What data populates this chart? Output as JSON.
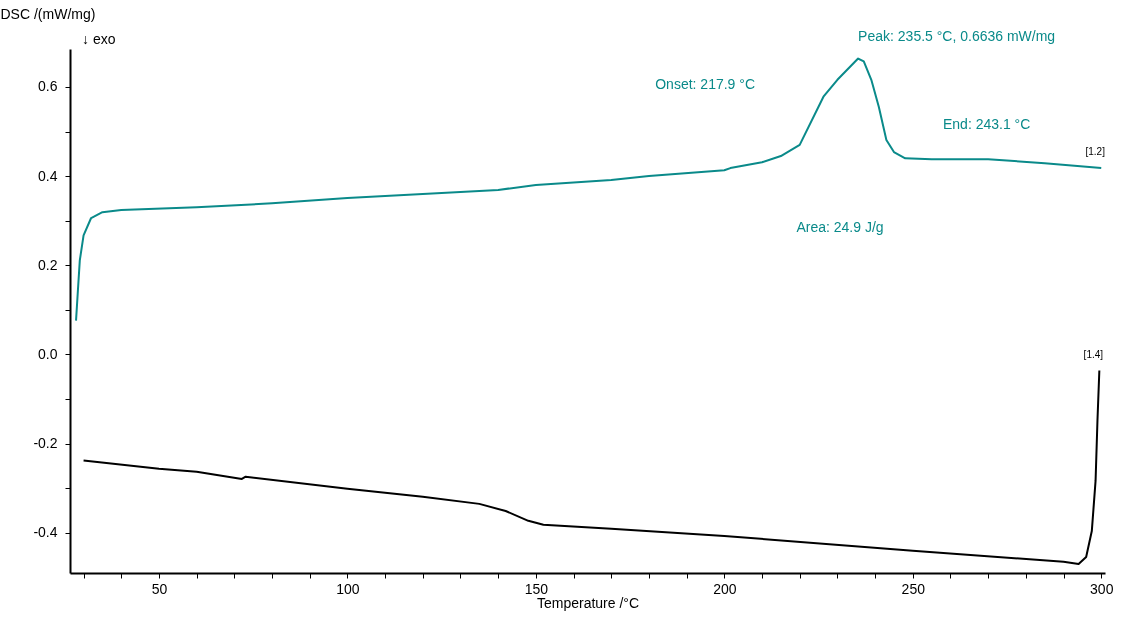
{
  "chart_data": {
    "type": "line",
    "xlabel": "Temperature /°C",
    "ylabel": "DSC /(mW/mg)",
    "xlim": [
      26.4,
      301
    ],
    "ylim": [
      -0.49,
      0.685
    ],
    "xticks": [
      {
        "value": 30,
        "label": null
      },
      {
        "value": 40,
        "label": null
      },
      50,
      {
        "value": 60,
        "label": null
      },
      {
        "value": 70,
        "label": null
      },
      {
        "value": 80,
        "label": null
      },
      {
        "value": 90,
        "label": null
      },
      100,
      {
        "value": 110,
        "label": null
      },
      {
        "value": 120,
        "label": null
      },
      {
        "value": 130,
        "label": null
      },
      {
        "value": 140,
        "label": null
      },
      150,
      {
        "value": 160,
        "label": null
      },
      {
        "value": 170,
        "label": null
      },
      {
        "value": 180,
        "label": null
      },
      {
        "value": 190,
        "label": null
      },
      200,
      {
        "value": 210,
        "label": null
      },
      {
        "value": 220,
        "label": null
      },
      {
        "value": 230,
        "label": null
      },
      {
        "value": 240,
        "label": null
      },
      250,
      {
        "value": 260,
        "label": null
      },
      {
        "value": 270,
        "label": null
      },
      {
        "value": 280,
        "label": null
      },
      {
        "value": 290,
        "label": null
      },
      300
    ],
    "yticks": [
      -0.4,
      {
        "value": -0.3,
        "label": null
      },
      -0.2,
      {
        "value": -0.1,
        "label": null
      },
      {
        "value": 0,
        "label": "0.0"
      },
      {
        "value": 0.1,
        "label": null
      },
      0.2,
      {
        "value": 0.3,
        "label": null
      },
      0.4,
      {
        "value": 0.5,
        "label": null
      },
      0.6
    ],
    "grid": false,
    "legend": false,
    "marker": "none",
    "line_style": "solid",
    "series": [
      {
        "name": "[1.2]",
        "color": "#0a8a8a",
        "x": [
          28,
          28.5,
          29,
          30,
          32,
          35,
          40,
          60,
          80,
          100,
          120,
          140,
          150,
          170,
          180,
          200,
          201.6,
          210,
          215,
          220,
          226.3,
          230,
          235.5,
          237,
          239,
          241,
          243,
          245,
          248,
          255,
          270,
          285,
          300
        ],
        "values": [
          0.076,
          0.144,
          0.211,
          0.267,
          0.306,
          0.319,
          0.324,
          0.33,
          0.339,
          0.351,
          0.36,
          0.369,
          0.38,
          0.391,
          0.4,
          0.413,
          0.418,
          0.431,
          0.445,
          0.47,
          0.578,
          0.616,
          0.6636,
          0.657,
          0.616,
          0.555,
          0.481,
          0.454,
          0.44,
          0.438,
          0.438,
          0.429,
          0.418
        ]
      },
      {
        "name": "[1.4]",
        "color": "#000000",
        "x": [
          30,
          50,
          60,
          72,
          73,
          100,
          120,
          135,
          142,
          148,
          152,
          170,
          200,
          250,
          290,
          294,
          296,
          297.5,
          298.5,
          299,
          299.5
        ],
        "values": [
          -0.238,
          -0.256,
          -0.263,
          -0.279,
          -0.274,
          -0.301,
          -0.319,
          -0.335,
          -0.351,
          -0.373,
          -0.382,
          -0.391,
          -0.407,
          -0.44,
          -0.465,
          -0.47,
          -0.454,
          -0.396,
          -0.283,
          -0.148,
          -0.036
        ]
      }
    ],
    "annotations": [
      "↓ exo",
      {
        "text": "Peak: 235.5 °C, 0.6636 mW/mg",
        "x": 235.5,
        "y": 0.6636
      },
      "Onset: 217.9 °C",
      "End: 243.1 °C",
      "Area: 24.9 J/g"
    ]
  }
}
